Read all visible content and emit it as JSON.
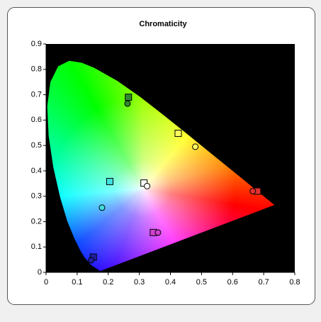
{
  "chart_data": {
    "type": "scatter",
    "title": "Chromaticity",
    "xlim": [
      0,
      0.8
    ],
    "xticks": [
      0,
      0.1,
      0.2,
      0.3,
      0.4,
      0.5,
      0.6,
      0.7,
      0.8
    ],
    "ylim": [
      0,
      0.9
    ],
    "yticks": [
      0,
      0.1,
      0.2,
      0.3,
      0.4,
      0.5,
      0.6,
      0.7,
      0.8,
      0.9
    ],
    "series": [
      {
        "marker": "square",
        "x": [
          0.265,
          0.425,
          0.68,
          0.315,
          0.205,
          0.345,
          0.152
        ],
        "values": [
          0.69,
          0.548,
          0.32,
          0.352,
          0.358,
          0.157,
          0.06
        ],
        "colors": [
          "#2f8a2f",
          "#ffff60",
          "#e03030",
          "#ffffff",
          "#40e0e0",
          "#d040d0",
          "#2020a0"
        ]
      },
      {
        "marker": "circle",
        "x": [
          0.262,
          0.48,
          0.665,
          0.325,
          0.18,
          0.36,
          0.145
        ],
        "values": [
          0.665,
          0.495,
          0.32,
          0.34,
          0.255,
          0.157,
          0.048
        ],
        "colors": [
          "#2f8a2f",
          "#ffff60",
          "#e03030",
          "#ffffff",
          "#40e0e0",
          "#d040d0",
          "#2020a0"
        ]
      }
    ]
  }
}
